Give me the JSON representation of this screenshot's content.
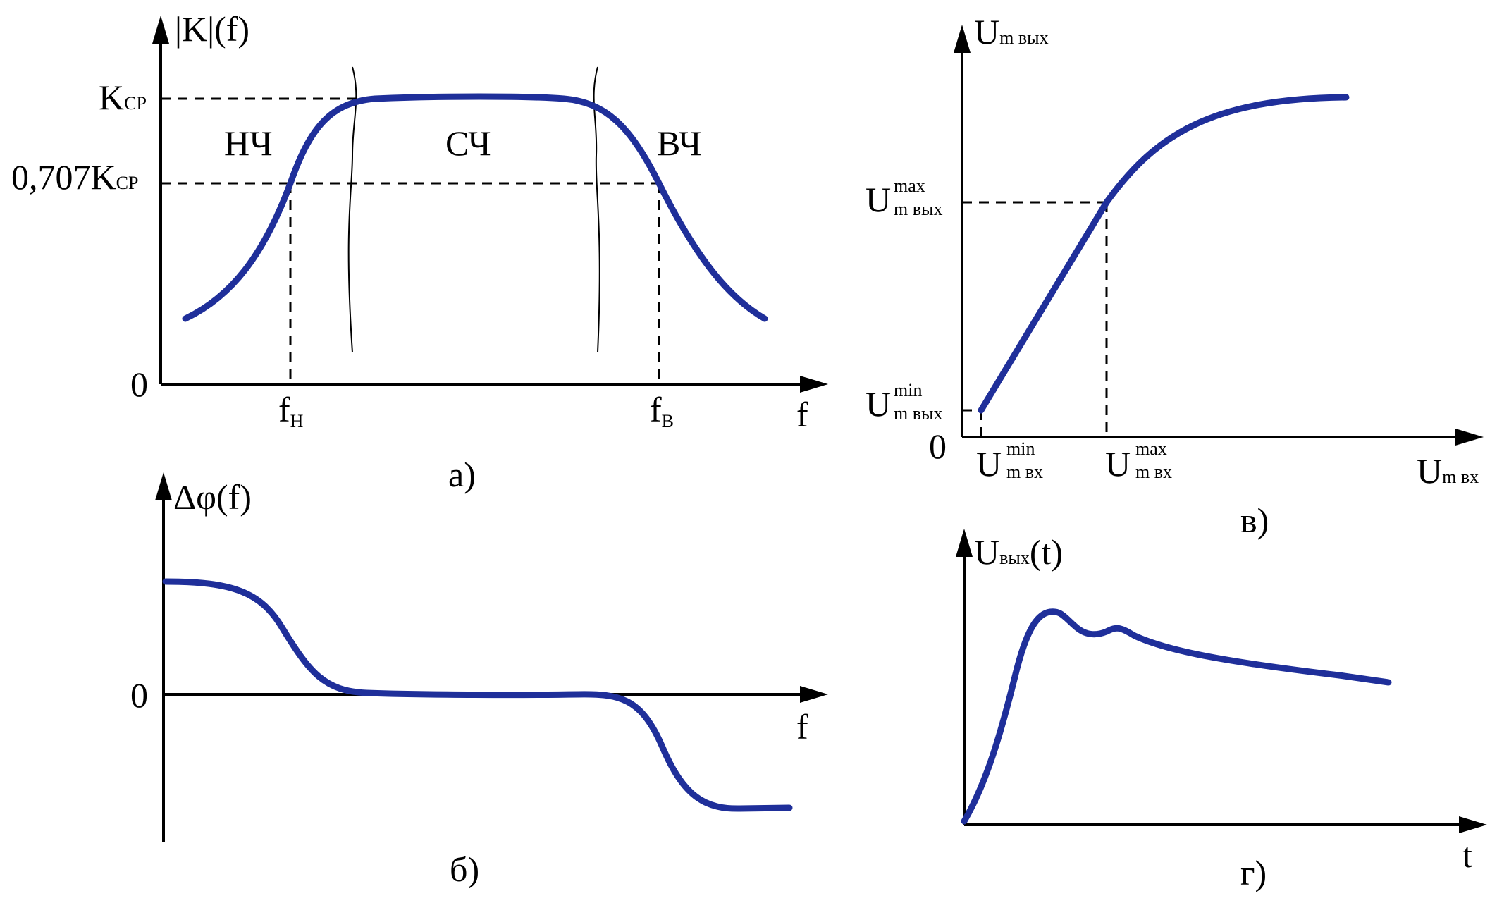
{
  "panel_a": {
    "y_axis_label": "|K|(f)",
    "x_axis_label": "f",
    "origin": "0",
    "k_cp": {
      "main": "K",
      "sub": "CP"
    },
    "k_0707": {
      "main": "0,707K",
      "sub": "CP"
    },
    "f_low": {
      "main": "f",
      "sub": "H"
    },
    "f_high": {
      "main": "f",
      "sub": "B"
    },
    "region_low": "НЧ",
    "region_mid": "СЧ",
    "region_high": "ВЧ",
    "caption": "а)"
  },
  "panel_b": {
    "y_axis_label": "Δφ(f)",
    "x_axis_label": "f",
    "origin": "0",
    "caption": "б)"
  },
  "panel_v": {
    "y_axis_label": {
      "main": "U",
      "sub": "m вых"
    },
    "x_axis_label": {
      "main": "U",
      "sub": "m вх"
    },
    "origin": "0",
    "y_max": {
      "main": "U",
      "sup": "max",
      "sub": "m вых"
    },
    "y_min": {
      "main": "U",
      "sup": "min",
      "sub": "m вых"
    },
    "x_min": {
      "main": "U",
      "sup": "min",
      "sub": "m вх"
    },
    "x_max": {
      "main": "U",
      "sup": "max",
      "sub": "m вх"
    },
    "caption": "в)"
  },
  "panel_g": {
    "y_axis_label": {
      "main": "U",
      "sub": "вых",
      "tail": "(t)"
    },
    "x_axis_label": "t",
    "caption": "г)"
  },
  "colors": {
    "curve": "#1f2f9a",
    "axes": "#000000"
  }
}
